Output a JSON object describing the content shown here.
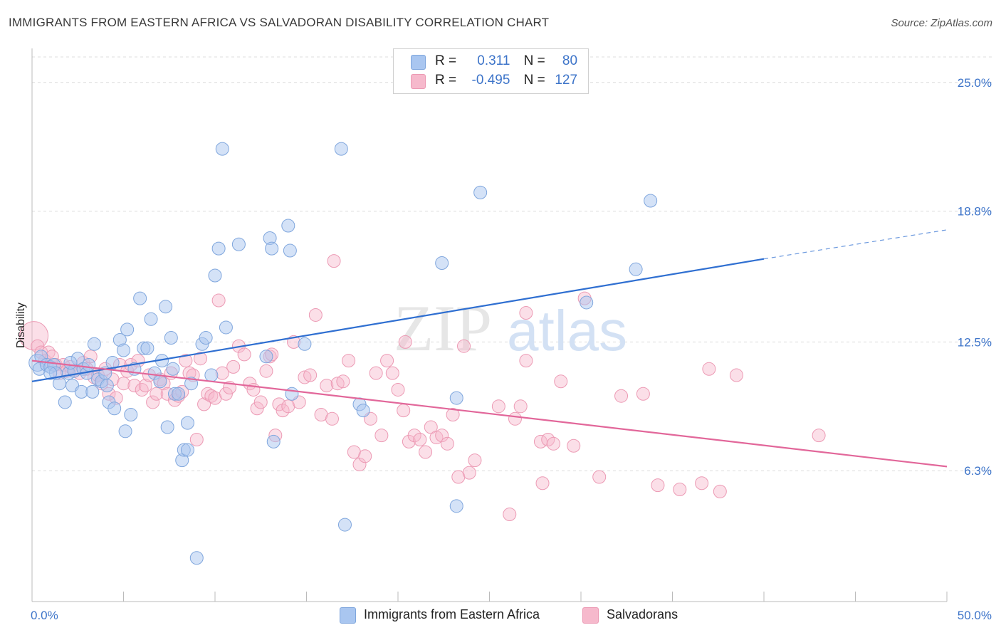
{
  "title": "IMMIGRANTS FROM EASTERN AFRICA VS SALVADORAN DISABILITY CORRELATION CHART",
  "source": "Source: ZipAtlas.com",
  "watermark": {
    "zip": "ZIP",
    "atlas": "atlas"
  },
  "legend": {
    "series1": {
      "r_label": "R =",
      "r_value": "0.311",
      "n_label": "N =",
      "n_value": "80"
    },
    "series2": {
      "r_label": "R =",
      "r_value": "-0.495",
      "n_label": "N =",
      "n_value": "127"
    }
  },
  "bottom_legend": {
    "series1": "Immigrants from Eastern Africa",
    "series2": "Salvadorans"
  },
  "colors": {
    "blue_fill": "#a9c6f0",
    "blue_stroke": "#7fa6dd",
    "blue_line": "#2f6fd1",
    "pink_fill": "#f6b9cc",
    "pink_stroke": "#ec9ab4",
    "pink_line": "#e2679a",
    "tick_text": "#3d74c9",
    "grid": "#dcdcdc"
  },
  "chart_data": {
    "type": "scatter",
    "title": "IMMIGRANTS FROM EASTERN AFRICA VS SALVADORAN DISABILITY CORRELATION CHART",
    "xlabel": "",
    "ylabel": "Disability",
    "xlim": [
      0,
      50
    ],
    "ylim": [
      0,
      26.5
    ],
    "x_tick_labels": [
      "0.0%",
      "50.0%"
    ],
    "y_ticks": [
      6.3,
      12.5,
      18.8,
      25.0
    ],
    "y_tick_labels": [
      "6.3%",
      "12.5%",
      "18.8%",
      "25.0%"
    ],
    "grid": true,
    "series": [
      {
        "name": "Immigrants from Eastern Africa",
        "color": "#a9c6f0",
        "r": 0.311,
        "n": 80,
        "trend": {
          "x0": 0,
          "y0": 10.6,
          "x1": 40,
          "y1": 16.5,
          "dashed_to_x": 50,
          "dashed_to_y": 17.9
        },
        "points": [
          [
            0.3,
            11.5
          ],
          [
            0.5,
            11.8
          ],
          [
            0.4,
            11.2
          ],
          [
            0.8,
            11.4
          ],
          [
            1.0,
            11.3
          ],
          [
            1.2,
            11.4
          ],
          [
            1.5,
            10.5
          ],
          [
            1.3,
            11.0
          ],
          [
            1.8,
            9.6
          ],
          [
            2.0,
            11.0
          ],
          [
            2.3,
            11.1
          ],
          [
            2.2,
            10.4
          ],
          [
            2.5,
            11.7
          ],
          [
            2.7,
            10.1
          ],
          [
            2.8,
            11.2
          ],
          [
            3.0,
            11.0
          ],
          [
            3.1,
            11.4
          ],
          [
            3.3,
            10.1
          ],
          [
            3.4,
            12.4
          ],
          [
            3.6,
            10.7
          ],
          [
            3.8,
            10.6
          ],
          [
            4.0,
            11.0
          ],
          [
            4.1,
            10.4
          ],
          [
            4.2,
            9.6
          ],
          [
            4.4,
            11.5
          ],
          [
            4.5,
            9.3
          ],
          [
            4.8,
            12.6
          ],
          [
            5.0,
            12.1
          ],
          [
            5.1,
            8.2
          ],
          [
            5.2,
            13.1
          ],
          [
            5.4,
            9.0
          ],
          [
            5.6,
            11.2
          ],
          [
            5.9,
            14.6
          ],
          [
            6.1,
            12.2
          ],
          [
            6.3,
            12.2
          ],
          [
            6.5,
            13.6
          ],
          [
            6.7,
            11.0
          ],
          [
            7.0,
            10.6
          ],
          [
            7.1,
            11.6
          ],
          [
            7.3,
            14.2
          ],
          [
            7.4,
            8.4
          ],
          [
            7.6,
            12.7
          ],
          [
            7.7,
            11.2
          ],
          [
            7.8,
            10.0
          ],
          [
            8.0,
            10.0
          ],
          [
            8.2,
            6.8
          ],
          [
            8.3,
            7.3
          ],
          [
            8.5,
            7.3
          ],
          [
            8.5,
            8.6
          ],
          [
            8.7,
            10.5
          ],
          [
            9.0,
            2.1
          ],
          [
            9.3,
            12.4
          ],
          [
            9.5,
            12.7
          ],
          [
            9.8,
            10.9
          ],
          [
            10.0,
            15.7
          ],
          [
            10.2,
            17.0
          ],
          [
            10.4,
            21.8
          ],
          [
            10.6,
            13.2
          ],
          [
            11.3,
            17.2
          ],
          [
            12.8,
            11.8
          ],
          [
            13.0,
            17.5
          ],
          [
            13.1,
            17.0
          ],
          [
            13.2,
            7.7
          ],
          [
            14.0,
            18.1
          ],
          [
            14.1,
            16.9
          ],
          [
            14.2,
            10.0
          ],
          [
            14.9,
            12.4
          ],
          [
            16.9,
            21.8
          ],
          [
            17.1,
            3.7
          ],
          [
            17.9,
            9.5
          ],
          [
            18.1,
            9.2
          ],
          [
            22.4,
            16.3
          ],
          [
            23.2,
            9.8
          ],
          [
            23.2,
            4.6
          ],
          [
            24.5,
            19.7
          ],
          [
            30.3,
            14.4
          ],
          [
            33.0,
            16.0
          ],
          [
            33.8,
            19.3
          ],
          [
            1.0,
            11.0
          ],
          [
            2.1,
            11.5
          ]
        ]
      },
      {
        "name": "Salvadorans",
        "color": "#f6b9cc",
        "r": -0.495,
        "n": 127,
        "trend": {
          "x0": 0,
          "y0": 11.6,
          "x1": 50,
          "y1": 6.5
        },
        "points": [
          [
            0.1,
            12.8
          ],
          [
            0.3,
            12.3
          ],
          [
            0.5,
            12.0
          ],
          [
            0.7,
            11.6
          ],
          [
            0.9,
            12.0
          ],
          [
            1.1,
            11.8
          ],
          [
            1.3,
            11.4
          ],
          [
            1.5,
            11.0
          ],
          [
            1.7,
            11.4
          ],
          [
            1.9,
            11.1
          ],
          [
            2.1,
            11.3
          ],
          [
            2.3,
            11.1
          ],
          [
            2.6,
            11.0
          ],
          [
            2.8,
            11.5
          ],
          [
            3.0,
            11.2
          ],
          [
            3.2,
            11.8
          ],
          [
            3.4,
            10.8
          ],
          [
            3.6,
            10.9
          ],
          [
            3.8,
            10.5
          ],
          [
            4.0,
            11.2
          ],
          [
            4.2,
            10.0
          ],
          [
            4.4,
            10.7
          ],
          [
            4.6,
            9.8
          ],
          [
            4.8,
            11.4
          ],
          [
            5.0,
            10.5
          ],
          [
            5.2,
            11.1
          ],
          [
            5.4,
            11.4
          ],
          [
            5.6,
            10.4
          ],
          [
            5.8,
            11.6
          ],
          [
            6.0,
            10.2
          ],
          [
            6.2,
            10.4
          ],
          [
            6.4,
            10.9
          ],
          [
            6.6,
            9.6
          ],
          [
            6.8,
            10.0
          ],
          [
            7.0,
            10.7
          ],
          [
            7.2,
            10.5
          ],
          [
            7.4,
            10.0
          ],
          [
            7.6,
            11.0
          ],
          [
            7.8,
            9.7
          ],
          [
            8.0,
            9.9
          ],
          [
            8.2,
            10.1
          ],
          [
            8.4,
            11.6
          ],
          [
            8.6,
            11.0
          ],
          [
            8.8,
            10.9
          ],
          [
            9.0,
            7.8
          ],
          [
            9.2,
            11.7
          ],
          [
            9.4,
            9.5
          ],
          [
            9.6,
            10.0
          ],
          [
            9.8,
            9.9
          ],
          [
            10.0,
            9.8
          ],
          [
            10.2,
            14.5
          ],
          [
            10.4,
            11.0
          ],
          [
            10.6,
            10.0
          ],
          [
            10.8,
            10.3
          ],
          [
            11.0,
            11.3
          ],
          [
            11.3,
            12.3
          ],
          [
            11.6,
            11.9
          ],
          [
            11.9,
            10.5
          ],
          [
            12.1,
            10.2
          ],
          [
            12.3,
            9.3
          ],
          [
            12.5,
            9.6
          ],
          [
            12.8,
            11.1
          ],
          [
            13.0,
            11.8
          ],
          [
            13.3,
            8.0
          ],
          [
            13.5,
            9.5
          ],
          [
            13.7,
            9.2
          ],
          [
            14.0,
            9.4
          ],
          [
            14.3,
            12.5
          ],
          [
            14.6,
            9.6
          ],
          [
            14.9,
            10.8
          ],
          [
            15.2,
            10.9
          ],
          [
            15.5,
            13.8
          ],
          [
            15.8,
            9.0
          ],
          [
            16.1,
            10.4
          ],
          [
            16.4,
            8.8
          ],
          [
            16.7,
            10.5
          ],
          [
            17.0,
            10.6
          ],
          [
            17.3,
            11.6
          ],
          [
            17.6,
            7.2
          ],
          [
            17.9,
            6.6
          ],
          [
            18.2,
            7.0
          ],
          [
            18.5,
            8.8
          ],
          [
            18.8,
            11.0
          ],
          [
            19.1,
            8.0
          ],
          [
            19.4,
            11.6
          ],
          [
            19.7,
            11.0
          ],
          [
            20.0,
            10.2
          ],
          [
            20.3,
            9.2
          ],
          [
            20.6,
            7.7
          ],
          [
            20.9,
            8.0
          ],
          [
            21.2,
            7.8
          ],
          [
            21.5,
            7.2
          ],
          [
            21.8,
            8.4
          ],
          [
            22.1,
            7.9
          ],
          [
            22.4,
            8.0
          ],
          [
            22.7,
            7.6
          ],
          [
            23.0,
            9.0
          ],
          [
            23.3,
            6.0
          ],
          [
            23.6,
            12.3
          ],
          [
            23.9,
            6.2
          ],
          [
            24.2,
            6.8
          ],
          [
            25.5,
            9.4
          ],
          [
            26.1,
            4.2
          ],
          [
            26.4,
            8.8
          ],
          [
            26.7,
            9.4
          ],
          [
            27.0,
            11.6
          ],
          [
            27.0,
            13.9
          ],
          [
            27.8,
            7.7
          ],
          [
            27.9,
            5.7
          ],
          [
            28.2,
            7.8
          ],
          [
            28.5,
            7.6
          ],
          [
            28.9,
            10.6
          ],
          [
            29.6,
            7.5
          ],
          [
            30.2,
            14.6
          ],
          [
            31.0,
            6.0
          ],
          [
            32.2,
            9.9
          ],
          [
            33.4,
            10.0
          ],
          [
            34.2,
            5.6
          ],
          [
            35.4,
            5.4
          ],
          [
            36.6,
            5.7
          ],
          [
            37.0,
            11.2
          ],
          [
            37.6,
            5.3
          ],
          [
            38.5,
            10.9
          ],
          [
            43.0,
            8.0
          ],
          [
            16.5,
            16.4
          ],
          [
            20.4,
            12.5
          ],
          [
            13.1,
            11.9
          ]
        ]
      }
    ]
  }
}
